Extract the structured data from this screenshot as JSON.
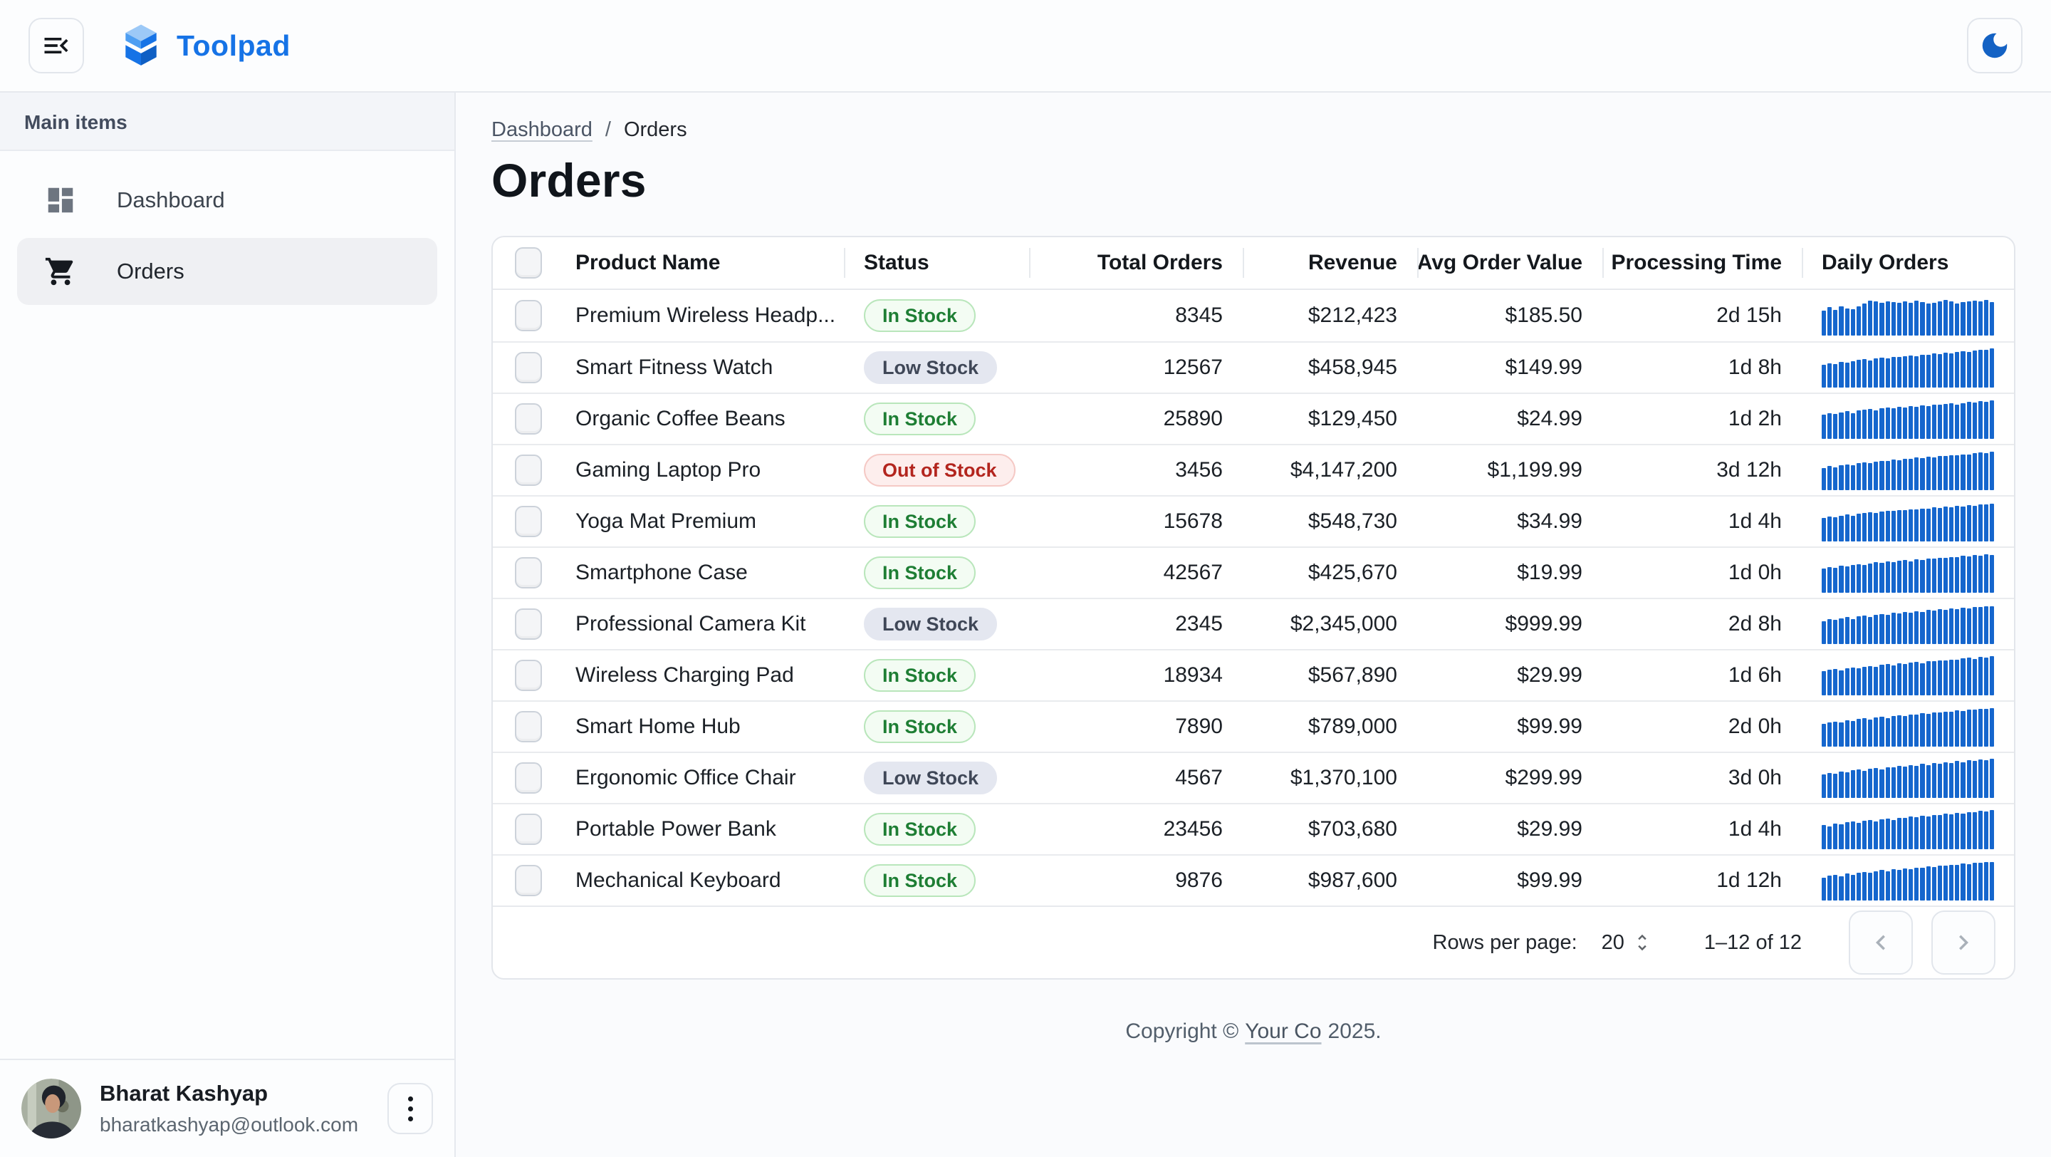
{
  "app": {
    "brand": "Toolpad"
  },
  "sidebar": {
    "section_label": "Main items",
    "items": [
      {
        "label": "Dashboard",
        "icon": "dashboard-icon",
        "selected": false
      },
      {
        "label": "Orders",
        "icon": "shopping-cart-icon",
        "selected": true
      }
    ]
  },
  "breadcrumb": {
    "parent": "Dashboard",
    "separator": "/",
    "current": "Orders"
  },
  "page": {
    "title": "Orders"
  },
  "table": {
    "columns": [
      "Product Name",
      "Status",
      "Total Orders",
      "Revenue",
      "Avg Order Value",
      "Processing Time",
      "Daily Orders"
    ],
    "rows": [
      {
        "product": "Premium Wireless Headp...",
        "status": "In Stock",
        "status_kind": "in-stock",
        "total_orders": "8345",
        "revenue": "$212,423",
        "avg_order_value": "$185.50",
        "processing_time": "2d 15h",
        "daily_orders": [
          62,
          71,
          65,
          74,
          68,
          66,
          73,
          81,
          88,
          85,
          83,
          86,
          84,
          82,
          85,
          83,
          87,
          84,
          81,
          83,
          86,
          90,
          85,
          81,
          84,
          86,
          88,
          85,
          90,
          84
        ]
      },
      {
        "product": "Smart Fitness Watch",
        "status": "Low Stock",
        "status_kind": "low-stock",
        "total_orders": "12567",
        "revenue": "$458,945",
        "avg_order_value": "$149.99",
        "processing_time": "1d 8h",
        "daily_orders": [
          57,
          61,
          59,
          64,
          62,
          66,
          69,
          71,
          68,
          73,
          75,
          74,
          77,
          76,
          79,
          81,
          78,
          83,
          82,
          85,
          84,
          87,
          86,
          89,
          91,
          90,
          93,
          95,
          94,
          99
        ]
      },
      {
        "product": "Organic Coffee Beans",
        "status": "In Stock",
        "status_kind": "in-stock",
        "total_orders": "25890",
        "revenue": "$129,450",
        "avg_order_value": "$24.99",
        "processing_time": "1d 2h",
        "daily_orders": [
          60,
          64,
          62,
          66,
          69,
          65,
          71,
          73,
          75,
          72,
          76,
          78,
          77,
          80,
          79,
          82,
          81,
          84,
          83,
          86,
          85,
          87,
          89,
          86,
          90,
          92,
          91,
          94,
          93,
          96
        ]
      },
      {
        "product": "Gaming Laptop Pro",
        "status": "Out of Stock",
        "status_kind": "out-of-stock",
        "total_orders": "3456",
        "revenue": "$4,147,200",
        "avg_order_value": "$1,199.99",
        "processing_time": "3d 12h",
        "daily_orders": [
          56,
          60,
          58,
          63,
          65,
          62,
          67,
          70,
          68,
          72,
          74,
          73,
          77,
          75,
          79,
          78,
          82,
          80,
          84,
          83,
          86,
          85,
          88,
          87,
          90,
          89,
          92,
          94,
          93,
          97
        ]
      },
      {
        "product": "Yoga Mat Premium",
        "status": "In Stock",
        "status_kind": "in-stock",
        "total_orders": "15678",
        "revenue": "$548,730",
        "avg_order_value": "$34.99",
        "processing_time": "1d 4h",
        "daily_orders": [
          59,
          63,
          61,
          65,
          68,
          64,
          70,
          72,
          74,
          71,
          75,
          77,
          76,
          79,
          78,
          81,
          80,
          83,
          82,
          85,
          84,
          87,
          86,
          89,
          88,
          91,
          90,
          93,
          92,
          95
        ]
      },
      {
        "product": "Smartphone Case",
        "status": "In Stock",
        "status_kind": "in-stock",
        "total_orders": "42567",
        "revenue": "$425,670",
        "avg_order_value": "$19.99",
        "processing_time": "1d 0h",
        "daily_orders": [
          61,
          65,
          63,
          68,
          66,
          70,
          72,
          69,
          74,
          76,
          75,
          78,
          77,
          80,
          82,
          79,
          84,
          83,
          86,
          85,
          88,
          87,
          90,
          89,
          92,
          91,
          94,
          93,
          96,
          95
        ]
      },
      {
        "product": "Professional Camera Kit",
        "status": "Low Stock",
        "status_kind": "low-stock",
        "total_orders": "2345",
        "revenue": "$2,345,000",
        "avg_order_value": "$999.99",
        "processing_time": "2d 8h",
        "daily_orders": [
          58,
          62,
          60,
          64,
          67,
          63,
          69,
          71,
          68,
          73,
          75,
          74,
          78,
          76,
          80,
          79,
          83,
          81,
          85,
          84,
          87,
          86,
          89,
          88,
          91,
          90,
          93,
          92,
          95,
          94
        ]
      },
      {
        "product": "Wireless Charging Pad",
        "status": "In Stock",
        "status_kind": "in-stock",
        "total_orders": "18934",
        "revenue": "$567,890",
        "avg_order_value": "$29.99",
        "processing_time": "1d 6h",
        "daily_orders": [
          60,
          64,
          66,
          62,
          68,
          70,
          67,
          72,
          74,
          71,
          76,
          78,
          75,
          80,
          79,
          82,
          84,
          81,
          86,
          85,
          88,
          87,
          90,
          89,
          92,
          94,
          91,
          96,
          95,
          98
        ]
      },
      {
        "product": "Smart Home Hub",
        "status": "In Stock",
        "status_kind": "in-stock",
        "total_orders": "7890",
        "revenue": "$789,000",
        "avg_order_value": "$99.99",
        "processing_time": "2d 0h",
        "daily_orders": [
          57,
          61,
          63,
          60,
          66,
          64,
          69,
          71,
          68,
          73,
          75,
          72,
          77,
          79,
          76,
          81,
          80,
          84,
          82,
          86,
          85,
          88,
          87,
          91,
          89,
          93,
          92,
          95,
          94,
          97
        ]
      },
      {
        "product": "Ergonomic Office Chair",
        "status": "Low Stock",
        "status_kind": "low-stock",
        "total_orders": "4567",
        "revenue": "$1,370,100",
        "avg_order_value": "$299.99",
        "processing_time": "3d 0h",
        "daily_orders": [
          59,
          63,
          61,
          66,
          64,
          69,
          71,
          68,
          73,
          75,
          72,
          77,
          76,
          80,
          78,
          82,
          81,
          85,
          83,
          87,
          86,
          89,
          88,
          92,
          90,
          94,
          93,
          96,
          95,
          99
        ]
      },
      {
        "product": "Portable Power Bank",
        "status": "In Stock",
        "status_kind": "in-stock",
        "total_orders": "23456",
        "revenue": "$703,680",
        "avg_order_value": "$29.99",
        "processing_time": "1d 4h",
        "daily_orders": [
          61,
          58,
          64,
          62,
          67,
          69,
          66,
          71,
          73,
          70,
          75,
          77,
          74,
          79,
          78,
          82,
          80,
          84,
          83,
          86,
          85,
          89,
          87,
          91,
          90,
          93,
          92,
          96,
          94,
          98
        ]
      },
      {
        "product": "Mechanical Keyboard",
        "status": "In Stock",
        "status_kind": "in-stock",
        "total_orders": "9876",
        "revenue": "$987,600",
        "avg_order_value": "$99.99",
        "processing_time": "1d 12h",
        "daily_orders": [
          58,
          62,
          65,
          61,
          67,
          64,
          70,
          72,
          69,
          74,
          76,
          73,
          78,
          77,
          81,
          79,
          83,
          82,
          86,
          84,
          88,
          87,
          90,
          89,
          93,
          91,
          95,
          94,
          97,
          96
        ]
      }
    ]
  },
  "pagination": {
    "rows_per_page_label": "Rows per page:",
    "rows_per_page": "20",
    "range": "1–12 of 12",
    "icons": [
      "rows-stepper-icon",
      "chevron-left-icon",
      "chevron-right-icon"
    ]
  },
  "footer": {
    "prefix": "Copyright ©",
    "link": "Your Co",
    "suffix": "2025."
  },
  "user": {
    "name": "Bharat Kashyap",
    "email": "bharatkashyap@outlook.com"
  },
  "header_icons": [
    "menu-collapse-icon",
    "toolpad-logo",
    "dark-mode-moon-icon"
  ],
  "colors": {
    "accent": "#1673e6",
    "spark_bar": "#1566cd",
    "moon": "#1462c4",
    "in_stock_text": "#1e7e34",
    "in_stock_bg": "#f3fcf3",
    "in_stock_border": "#b9e6bb",
    "low_stock_text": "#3f4757",
    "low_stock_bg": "#e4e7f0",
    "out_of_stock_text": "#b3251e",
    "out_of_stock_bg": "#fdeeed",
    "out_of_stock_border": "#f5c9c5"
  }
}
